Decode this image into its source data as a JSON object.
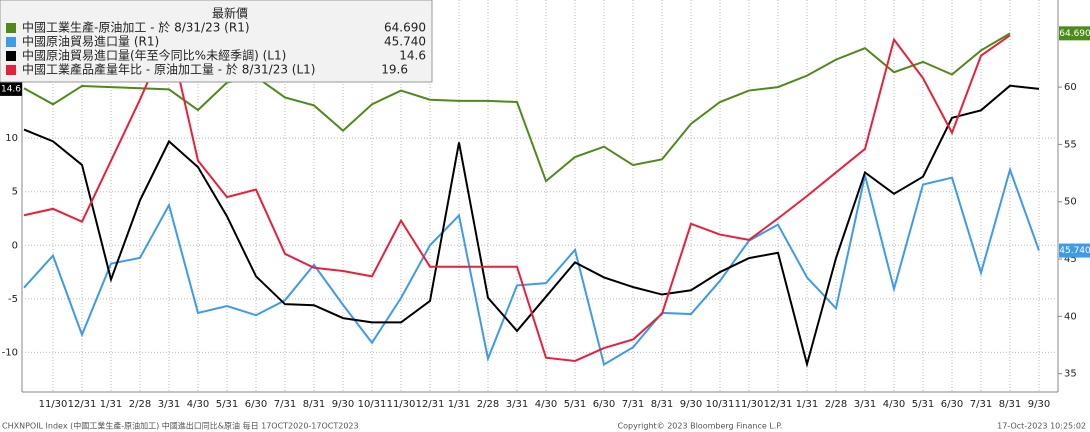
{
  "chart_data": {
    "type": "line",
    "legend_header": "最新價",
    "categories": [
      null,
      "11/30",
      "12/31",
      "1/31",
      "2/28",
      "3/31",
      "4/30",
      "5/31",
      "6/30",
      "7/31",
      "8/31",
      "9/30",
      "10/31",
      "11/30",
      "12/31",
      "1/31",
      "2/28",
      "3/31",
      "4/30",
      "5/31",
      "6/30",
      "7/31",
      "8/31",
      "9/30",
      "10/31",
      "11/30",
      "12/31",
      "1/31",
      "2/28",
      "3/31",
      "4/30",
      "5/31",
      "6/30",
      "7/31",
      "8/31",
      "9/30"
    ],
    "series": [
      {
        "name": "中國工業生產-原油加工 -  於 8/31/23  (R1)",
        "color": "#4d8a1a",
        "axis": "y2",
        "values": [
          59.9,
          58.5,
          60.1,
          60.0,
          59.9,
          59.8,
          58.0,
          60.4,
          60.9,
          59.1,
          58.4,
          56.2,
          58.5,
          59.7,
          58.9,
          58.8,
          58.8,
          58.7,
          51.8,
          53.9,
          54.8,
          53.2,
          53.7,
          56.8,
          58.7,
          59.7,
          60.0,
          61.0,
          62.4,
          63.4,
          61.3,
          62.2,
          61.1,
          63.2,
          64.69,
          null
        ],
        "value_labels": [
          null,
          null,
          null,
          null,
          null,
          null,
          null,
          null,
          null,
          null,
          null,
          null,
          null,
          null,
          null,
          null,
          null,
          null,
          null,
          null,
          null,
          null,
          null,
          null,
          null,
          null,
          null,
          null,
          null,
          null,
          null,
          null,
          null,
          null,
          "64.690",
          null
        ]
      },
      {
        "name": "中國原油貿易進口量  (R1)",
        "color": "#3d9be9",
        "axis": "y2",
        "values": [
          42.5,
          45.3,
          38.4,
          44.6,
          45.1,
          49.7,
          40.3,
          40.9,
          40.1,
          41.4,
          44.5,
          41.0,
          37.7,
          41.6,
          46.2,
          48.8,
          36.3,
          42.7,
          42.9,
          45.8,
          35.8,
          37.3,
          40.3,
          40.2,
          43.1,
          46.6,
          48.0,
          43.4,
          40.7,
          52.3,
          42.4,
          51.5,
          52.1,
          43.8,
          52.8,
          45.74
        ],
        "value_labels": [
          null,
          null,
          null,
          null,
          null,
          null,
          null,
          null,
          null,
          null,
          null,
          null,
          null,
          null,
          null,
          null,
          null,
          null,
          null,
          null,
          null,
          null,
          null,
          null,
          null,
          null,
          null,
          null,
          null,
          null,
          null,
          null,
          null,
          null,
          null,
          "45.740"
        ]
      },
      {
        "name": "中國原油貿易進口量(年至今同比%未經季調)  (L1)",
        "color": "#000000",
        "values": [
          10.8,
          9.7,
          7.5,
          -3.2,
          4.2,
          9.7,
          7.3,
          2.7,
          -2.9,
          -5.5,
          -5.6,
          -6.8,
          -7.2,
          -7.2,
          -5.2,
          9.6,
          -4.9,
          -8.0,
          -4.8,
          -1.6,
          -3.0,
          -3.9,
          -4.6,
          -4.2,
          -2.5,
          -1.2,
          -0.7,
          -11.1,
          -1.2,
          6.8,
          4.8,
          6.4,
          11.9,
          12.6,
          14.9,
          14.6
        ]
      },
      {
        "name": "中國工業產品產量年比 - 原油加工量 -  於 8/31/23  (L1)",
        "color": "#e8203c",
        "values": [
          2.8,
          3.4,
          2.2,
          7.9,
          13.6,
          19.8,
          7.9,
          4.5,
          5.2,
          -0.8,
          -2.1,
          -2.4,
          -2.9,
          2.3,
          -2.0,
          -2.0,
          -2.0,
          -2.0,
          -10.5,
          -10.8,
          -9.6,
          -8.8,
          -6.4,
          2.0,
          1.0,
          0.5,
          2.5,
          4.6,
          6.8,
          9.0,
          19.2,
          15.6,
          10.5,
          17.7,
          19.6,
          null
        ]
      }
    ],
    "ylim": [
      -13.7,
      22.9
    ],
    "yticks": [
      -10,
      -5,
      0,
      5,
      10
    ],
    "y2lim": [
      33.4,
      67.6
    ],
    "y2ticks": [
      35,
      40,
      45,
      50,
      55,
      60
    ],
    "grid": true,
    "footer_left": "CHXNPOIL Index (中國工業生產-原油加工) 中國進出口同比&原油  每日 17OCT2020-17OCT2023",
    "footer_center": "Copyright© 2023 Bloomberg Finance L.P.",
    "footer_right": "17-Oct-2023 10:25:02"
  }
}
